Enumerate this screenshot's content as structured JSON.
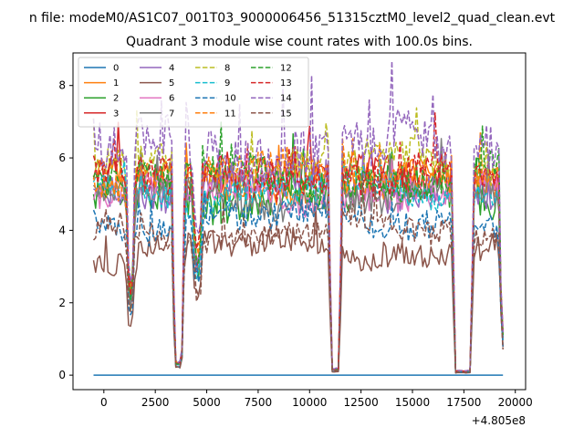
{
  "chart_data": {
    "type": "line",
    "suptitle": "n file: modeM0/AS1C07_001T03_9000006456_51315cztM0_level2_quad_clean.evt",
    "title": "Quadrant 3 module wise count rates with 100.0s bins.",
    "xlabel": "",
    "ylabel": "",
    "x_offset_label": "+4.805e8",
    "xlim": [
      -1500,
      20500
    ],
    "ylim": [
      -0.4,
      8.9
    ],
    "xticks": [
      0,
      2500,
      5000,
      7500,
      10000,
      12500,
      15000,
      17500,
      20000
    ],
    "yticks": [
      0,
      2,
      4,
      6,
      8
    ],
    "x_start": -500,
    "x_end": 19400,
    "x_step": 100,
    "legend_loc": "upper left",
    "legend_columns": 4,
    "dips": [
      {
        "center": 1300,
        "half_width": 80,
        "floor": 0.4
      },
      {
        "center": 3620,
        "half_width": 170,
        "floor": 0.06
      },
      {
        "center": 4550,
        "half_width": 120,
        "floor": 0.6
      },
      {
        "center": 11250,
        "half_width": 180,
        "floor": 0.03
      },
      {
        "center": 17450,
        "half_width": 380,
        "floor": 0.02
      },
      {
        "center": 19400,
        "half_width": 60,
        "floor": 0.2
      }
    ],
    "series": [
      {
        "name": "0",
        "color": "#1f77b4",
        "dash": "solid",
        "level": 0.0,
        "noise": 0.0
      },
      {
        "name": "1",
        "color": "#ff7f0e",
        "dash": "solid",
        "level": 5.3,
        "noise": 0.45
      },
      {
        "name": "2",
        "color": "#2ca02c",
        "dash": "solid",
        "level": 5.0,
        "noise": 0.55
      },
      {
        "name": "3",
        "color": "#d62728",
        "dash": "solid",
        "level": 5.5,
        "noise": 0.45
      },
      {
        "name": "4",
        "color": "#9467bd",
        "dash": "solid",
        "level": 5.2,
        "noise": 0.45
      },
      {
        "name": "5",
        "color": "#8c564b",
        "dash": "solid",
        "level": 3.5,
        "noise": 0.4
      },
      {
        "name": "6",
        "color": "#e377c2",
        "dash": "solid",
        "level": 5.0,
        "noise": 0.4
      },
      {
        "name": "7",
        "color": "#7f7f7f",
        "dash": "solid",
        "level": 4.9,
        "noise": 0.4
      },
      {
        "name": "8",
        "color": "#bcbd22",
        "dash": "dashed",
        "level": 5.8,
        "noise": 0.45
      },
      {
        "name": "9",
        "color": "#17becf",
        "dash": "dashed",
        "level": 5.1,
        "noise": 0.4
      },
      {
        "name": "10",
        "color": "#1f77b4",
        "dash": "dashed",
        "level": 4.3,
        "noise": 0.4
      },
      {
        "name": "11",
        "color": "#ff7f0e",
        "dash": "dashed",
        "level": 5.6,
        "noise": 0.4
      },
      {
        "name": "12",
        "color": "#2ca02c",
        "dash": "dashed",
        "level": 5.4,
        "noise": 0.45
      },
      {
        "name": "13",
        "color": "#d62728",
        "dash": "dashed",
        "level": 5.5,
        "noise": 0.45
      },
      {
        "name": "14",
        "color": "#9467bd",
        "dash": "dashed",
        "level": 6.3,
        "noise": 0.7
      },
      {
        "name": "15",
        "color": "#8c564b",
        "dash": "dashed",
        "level": 4.0,
        "noise": 0.4
      }
    ]
  }
}
